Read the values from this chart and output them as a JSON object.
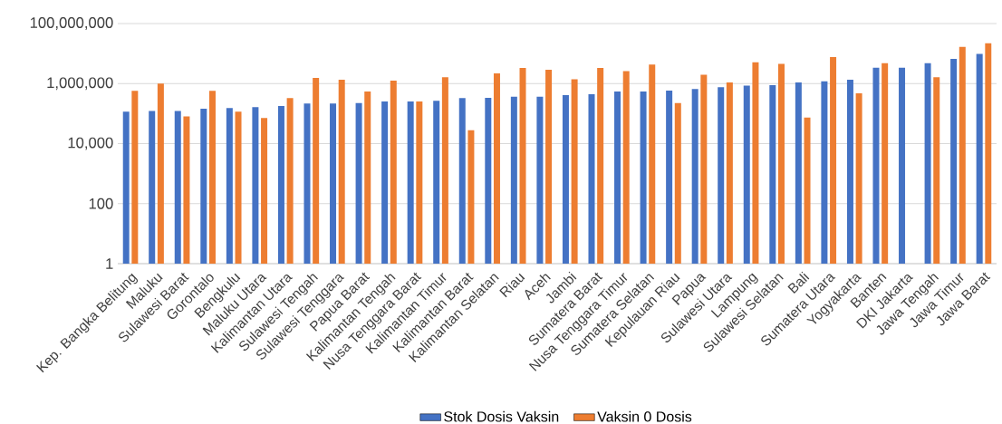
{
  "chart_data": {
    "type": "bar",
    "categories": [
      "Kep. Bangka Belitung",
      "Maluku",
      "Sulawesi Barat",
      "Gorontalo",
      "Bengkulu",
      "Maluku Utara",
      "Kalimantan Utara",
      "Sulawesi Tengah",
      "Sulawesi Tenggara",
      "Papua Barat",
      "Kalimantan Tengah",
      "Nusa Tenggara Barat",
      "Kalimantan Timur",
      "Kalimantan Barat",
      "Kalimantan Selatan",
      "Riau",
      "Aceh",
      "Jambi",
      "Sumatera Barat",
      "Nusa Tenggara Timur",
      "Sumatera Selatan",
      "Kepulauan Riau",
      "Papua",
      "Sulawesi Utara",
      "Lampung",
      "Sulawesi Selatan",
      "Bali",
      "Sumatera Utara",
      "Yogyakarta",
      "Banten",
      "DKI Jakarta",
      "Jawa Tengah",
      "Jawa Timur",
      "Jawa Barat"
    ],
    "series": [
      {
        "name": "Stok Dosis Vaksin",
        "color": "#4472c4",
        "values": [
          115000,
          123000,
          123000,
          145000,
          152000,
          163000,
          180000,
          215000,
          215000,
          226000,
          253000,
          253000,
          265000,
          330000,
          335000,
          368000,
          368000,
          413000,
          443000,
          545000,
          545000,
          585000,
          660000,
          757000,
          850000,
          890000,
          1100000,
          1180000,
          1350000,
          3400000,
          3400000,
          4800000,
          6600000,
          9800000
        ]
      },
      {
        "name": "Vaksin 0 Dosis",
        "color": "#ed7d31",
        "values": [
          570000,
          1000000,
          81000,
          570000,
          115000,
          71000,
          330000,
          1550000,
          1350000,
          545000,
          1260000,
          253000,
          1630000,
          28000,
          2200000,
          3300000,
          2900000,
          1400000,
          3300000,
          2600000,
          4300000,
          226000,
          1960000,
          1100000,
          5100000,
          4500000,
          74000,
          7600000,
          475000,
          4800000,
          null,
          1630000,
          16600000,
          22000000
        ]
      }
    ],
    "log": true,
    "ylim": [
      1,
      100000000
    ],
    "yticks": [
      {
        "value": 1,
        "label": "1"
      },
      {
        "value": 100,
        "label": "100"
      },
      {
        "value": 10000,
        "label": "10,000"
      },
      {
        "value": 1000000,
        "label": "1,000,000"
      },
      {
        "value": 100000000,
        "label": "100,000,000"
      }
    ],
    "grid": "y",
    "legend": "bottom"
  }
}
